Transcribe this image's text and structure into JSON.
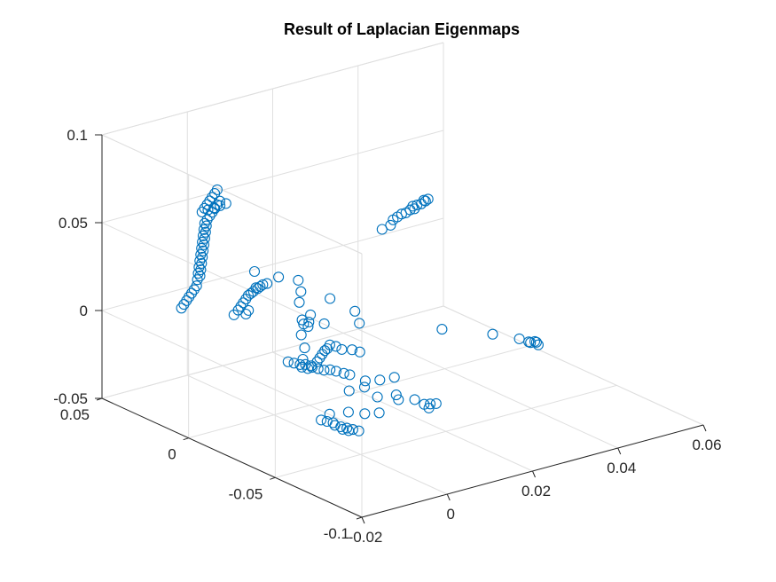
{
  "chart_data": {
    "type": "scatter3d",
    "title": "Result of Laplacian Eigenmaps",
    "xlabel": "",
    "ylabel": "",
    "zlabel": "",
    "xlim": [
      -0.02,
      0.06
    ],
    "ylim": [
      -0.1,
      0.05
    ],
    "zlim": [
      -0.05,
      0.1
    ],
    "x_ticks": [
      "-0.02",
      "0",
      "0.02",
      "0.04",
      "0.06"
    ],
    "y_ticks": [
      "-0.1",
      "-0.05",
      "0",
      "0.05"
    ],
    "z_ticks": [
      "-0.05",
      "0",
      "0.05",
      "0.1"
    ],
    "grid": true,
    "marker": "circle",
    "marker_color": "#0072bd",
    "points": [
      [
        -0.01,
        -0.004,
        0.018
      ],
      [
        -0.009,
        -0.003,
        0.019
      ],
      [
        -0.008,
        -0.002,
        0.02
      ],
      [
        -0.007,
        -0.001,
        0.021
      ],
      [
        -0.006,
        0.0,
        0.022
      ],
      [
        -0.005,
        0.001,
        0.022
      ],
      [
        -0.004,
        0.002,
        0.022
      ],
      [
        -0.003,
        0.003,
        0.023
      ],
      [
        -0.003,
        0.002,
        0.023
      ],
      [
        -0.002,
        0.003,
        0.023
      ],
      [
        -0.001,
        0.004,
        0.023
      ],
      [
        0.0,
        0.004,
        0.023
      ],
      [
        -0.011,
        -0.004,
        0.016
      ],
      [
        -0.008,
        -0.005,
        0.017
      ],
      [
        -0.009,
        -0.006,
        0.016
      ],
      [
        -0.005,
        -0.032,
        0.018
      ],
      [
        -0.006,
        -0.031,
        0.022
      ],
      [
        -0.004,
        -0.03,
        0.019
      ],
      [
        -0.007,
        -0.033,
        0.015
      ],
      [
        -0.005,
        -0.03,
        0.005
      ],
      [
        -0.005,
        -0.029,
        -0.002
      ],
      [
        -0.004,
        -0.028,
        -0.006
      ],
      [
        -0.003,
        -0.029,
        -0.007
      ],
      [
        0.004,
        -0.062,
        -0.016
      ],
      [
        0.007,
        -0.064,
        -0.017
      ],
      [
        0.008,
        -0.067,
        -0.019
      ],
      [
        0.009,
        -0.068,
        -0.019
      ],
      [
        0.01,
        -0.069,
        -0.019
      ],
      [
        0.005,
        0.04,
        0.049
      ],
      [
        0.004,
        0.041,
        0.048
      ],
      [
        0.003,
        0.042,
        0.047
      ],
      [
        0.002,
        0.043,
        0.046
      ],
      [
        0.001,
        0.044,
        0.045
      ],
      [
        0.002,
        0.045,
        0.046
      ],
      [
        0.003,
        0.046,
        0.047
      ],
      [
        0.004,
        0.047,
        0.048
      ],
      [
        0.005,
        0.048,
        0.049
      ],
      [
        0.006,
        0.049,
        0.05
      ],
      [
        0.007,
        0.05,
        0.051
      ],
      [
        0.006,
        0.046,
        0.047
      ],
      [
        0.005,
        0.045,
        0.046
      ],
      [
        0.004,
        0.044,
        0.045
      ],
      [
        0.003,
        0.043,
        0.044
      ],
      [
        0.002,
        0.042,
        0.043
      ],
      [
        0.001,
        0.041,
        0.042
      ],
      [
        0.0,
        0.04,
        0.041
      ],
      [
        0.0,
        0.039,
        0.04
      ],
      [
        -0.001,
        0.038,
        0.039
      ],
      [
        -0.001,
        0.037,
        0.038
      ],
      [
        -0.002,
        0.036,
        0.037
      ],
      [
        -0.002,
        0.035,
        0.036
      ],
      [
        -0.003,
        0.034,
        0.035
      ],
      [
        -0.003,
        0.033,
        0.034
      ],
      [
        -0.004,
        0.032,
        0.033
      ],
      [
        -0.004,
        0.031,
        0.032
      ],
      [
        -0.005,
        0.03,
        0.031
      ],
      [
        -0.005,
        0.029,
        0.03
      ],
      [
        -0.006,
        0.028,
        0.029
      ],
      [
        -0.006,
        0.027,
        0.028
      ],
      [
        -0.007,
        0.026,
        0.027
      ],
      [
        -0.007,
        0.025,
        0.026
      ],
      [
        -0.008,
        0.024,
        0.025
      ],
      [
        -0.008,
        0.023,
        0.024
      ],
      [
        -0.009,
        0.022,
        0.023
      ],
      [
        -0.01,
        0.02,
        0.021
      ],
      [
        -0.011,
        0.019,
        0.02
      ],
      [
        -0.012,
        0.018,
        0.019
      ],
      [
        -0.013,
        0.017,
        0.018
      ],
      [
        -0.014,
        0.016,
        0.017
      ],
      [
        -0.015,
        0.015,
        0.016
      ],
      [
        -0.016,
        0.014,
        0.015
      ],
      [
        0.006,
        0.026,
        0.016
      ],
      [
        0.01,
        0.022,
        0.012
      ],
      [
        0.013,
        0.018,
        0.01
      ],
      [
        0.012,
        0.014,
        0.006
      ],
      [
        0.01,
        0.01,
        0.003
      ],
      [
        0.011,
        0.006,
        -0.003
      ],
      [
        0.013,
        0.003,
        -0.008
      ],
      [
        0.018,
        0.012,
        -0.001
      ],
      [
        0.021,
        0.005,
        -0.007
      ],
      [
        0.02,
        0.0,
        -0.011
      ],
      [
        0.011,
        0.01,
        -0.01
      ],
      [
        0.047,
        0.047,
        0.009
      ],
      [
        0.048,
        0.047,
        0.01
      ],
      [
        0.049,
        0.047,
        0.011
      ],
      [
        0.05,
        0.047,
        0.011
      ],
      [
        0.051,
        0.047,
        0.012
      ],
      [
        0.052,
        0.047,
        0.012
      ],
      [
        0.052,
        0.048,
        0.013
      ],
      [
        0.053,
        0.048,
        0.013
      ],
      [
        0.054,
        0.048,
        0.013
      ],
      [
        0.055,
        0.048,
        0.014
      ],
      [
        0.055,
        0.049,
        0.014
      ],
      [
        0.056,
        0.049,
        0.014
      ],
      [
        0.044,
        0.046,
        0.006
      ],
      [
        0.046,
        0.046,
        0.007
      ],
      [
        0.028,
        -0.028,
        -0.007
      ],
      [
        0.035,
        -0.04,
        -0.009
      ],
      [
        0.038,
        -0.048,
        -0.01
      ],
      [
        0.039,
        -0.051,
        -0.011
      ],
      [
        0.04,
        -0.052,
        -0.011
      ],
      [
        0.04,
        -0.053,
        -0.011
      ],
      [
        0.039,
        -0.052,
        -0.011
      ],
      [
        0.04,
        -0.054,
        -0.012
      ],
      [
        -0.004,
        -0.018,
        -0.009
      ],
      [
        -0.003,
        -0.019,
        -0.01
      ],
      [
        -0.002,
        -0.02,
        -0.011
      ],
      [
        -0.002,
        -0.021,
        -0.012
      ],
      [
        -0.001,
        -0.022,
        -0.013
      ],
      [
        0.0,
        -0.022,
        -0.013
      ],
      [
        0.001,
        -0.023,
        -0.014
      ],
      [
        0.002,
        -0.024,
        -0.015
      ],
      [
        0.003,
        -0.025,
        -0.015
      ],
      [
        0.004,
        -0.026,
        -0.016
      ],
      [
        0.005,
        -0.028,
        -0.017
      ],
      [
        0.006,
        -0.029,
        -0.018
      ],
      [
        0.002,
        -0.02,
        -0.012
      ],
      [
        0.003,
        -0.019,
        -0.011
      ],
      [
        0.004,
        -0.018,
        -0.01
      ],
      [
        0.005,
        -0.017,
        -0.009
      ],
      [
        0.006,
        -0.016,
        -0.009
      ],
      [
        0.007,
        -0.015,
        -0.008
      ],
      [
        0.008,
        -0.016,
        -0.009
      ],
      [
        0.009,
        -0.017,
        -0.011
      ],
      [
        0.011,
        -0.018,
        -0.012
      ],
      [
        0.012,
        -0.02,
        -0.013
      ],
      [
        -0.006,
        -0.042,
        -0.03
      ],
      [
        -0.005,
        -0.043,
        -0.031
      ],
      [
        -0.004,
        -0.044,
        -0.032
      ],
      [
        -0.004,
        -0.045,
        -0.033
      ],
      [
        -0.003,
        -0.046,
        -0.034
      ],
      [
        -0.003,
        -0.047,
        -0.035
      ],
      [
        -0.002,
        -0.047,
        -0.035
      ],
      [
        -0.002,
        -0.048,
        -0.036
      ],
      [
        -0.001,
        -0.048,
        -0.036
      ],
      [
        0.0,
        -0.049,
        -0.037
      ],
      [
        -0.004,
        -0.042,
        -0.028
      ],
      [
        0.0,
        -0.043,
        -0.029
      ],
      [
        0.003,
        -0.045,
        -0.031
      ],
      [
        0.006,
        -0.046,
        -0.032
      ],
      [
        0.008,
        -0.04,
        -0.027
      ],
      [
        0.012,
        -0.041,
        -0.028
      ],
      [
        0.003,
        -0.036,
        -0.022
      ],
      [
        0.007,
        -0.035,
        -0.023
      ],
      [
        0.008,
        -0.033,
        -0.021
      ],
      [
        0.011,
        -0.034,
        -0.022
      ],
      [
        0.014,
        -0.035,
        -0.022
      ],
      [
        0.016,
        -0.05,
        -0.034
      ]
    ]
  }
}
